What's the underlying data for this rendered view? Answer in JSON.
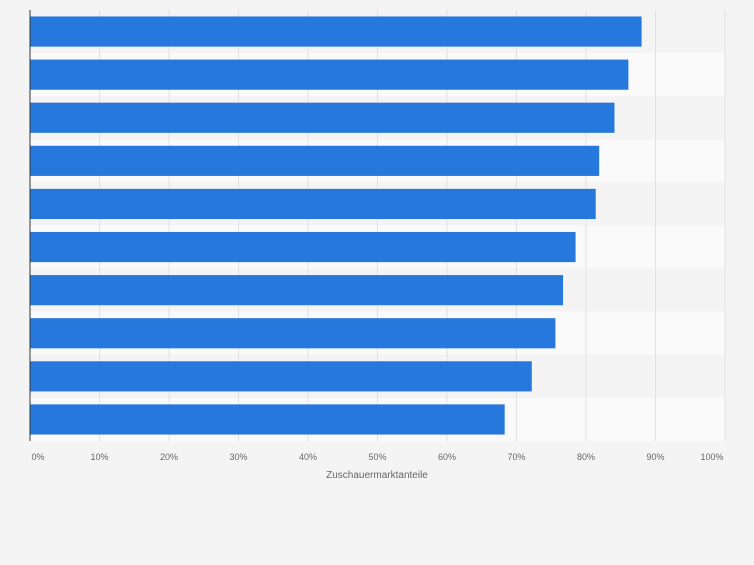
{
  "chart_data": {
    "type": "bar",
    "orientation": "horizontal",
    "categories": [
      "",
      "",
      "",
      "",
      "",
      "",
      "",
      "",
      "",
      ""
    ],
    "values": [
      88,
      86.1,
      84.1,
      81.9,
      81.4,
      78.5,
      76.7,
      75.6,
      72.2,
      68.3
    ],
    "title": "",
    "xlabel": "Zuschauermarktanteile",
    "ylabel": "",
    "xlim": [
      0,
      100
    ],
    "x_ticks": [
      0,
      10,
      20,
      30,
      40,
      50,
      60,
      70,
      80,
      90,
      100
    ],
    "x_tick_labels": [
      "0%",
      "10%",
      "20%",
      "30%",
      "40%",
      "50%",
      "60%",
      "70%",
      "80%",
      "90%",
      "100%"
    ],
    "grid": true,
    "bar_color": "#2778dd",
    "band_colors": [
      "#f4f4f4",
      "#fafafa"
    ]
  }
}
